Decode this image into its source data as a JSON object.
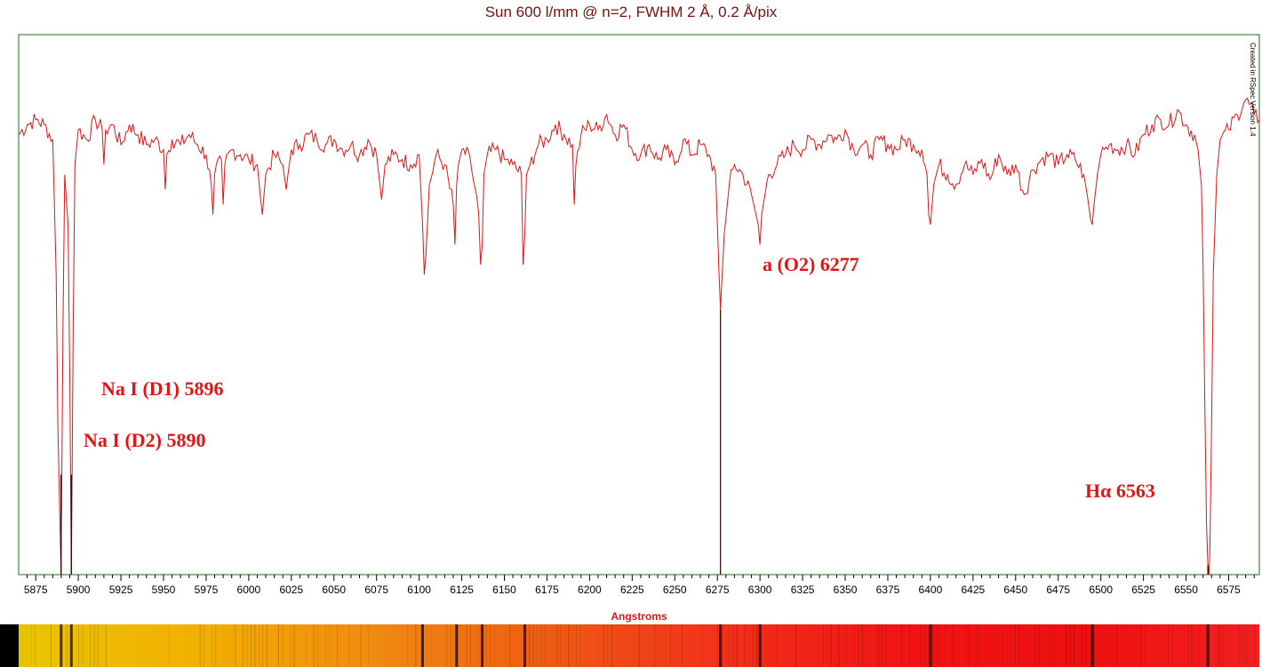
{
  "chart_data": {
    "type": "line",
    "title": "Sun 600 l/mm @ n=2, FWHM 2 Å, 0.2 Å/pix",
    "xlabel": "Angstroms",
    "ylabel": "",
    "xlim": [
      5865,
      6593
    ],
    "ylim": [
      0,
      1.08
    ],
    "x_ticks": [
      5875,
      5900,
      5925,
      5950,
      5975,
      6000,
      6025,
      6050,
      6075,
      6100,
      6125,
      6150,
      6175,
      6200,
      6225,
      6250,
      6275,
      6300,
      6325,
      6350,
      6375,
      6400,
      6425,
      6450,
      6475,
      6500,
      6525,
      6550,
      6575
    ],
    "grid": false,
    "legend": "none",
    "line_color": "#e31414",
    "frame_color": "#1f6f1f",
    "series": [
      {
        "x": [
          5865,
          5870,
          5875,
          5880,
          5885,
          5887,
          5888,
          5889,
          5889.9,
          5891,
          5892,
          5894,
          5895,
          5895.9,
          5897,
          5898,
          5900,
          5905,
          5910,
          5914,
          5915,
          5916,
          5920,
          5925,
          5930,
          5935,
          5940,
          5945,
          5950,
          5951,
          5952,
          5955,
          5960,
          5965,
          5970,
          5975,
          5978,
          5979,
          5980,
          5984,
          5985,
          5986,
          5990,
          5995,
          6000,
          6005,
          6007,
          6008,
          6010,
          6015,
          6020,
          6022,
          6023,
          6025,
          6030,
          6035,
          6040,
          6045,
          6050,
          6055,
          6060,
          6065,
          6070,
          6075,
          6077,
          6078,
          6080,
          6085,
          6090,
          6095,
          6100,
          6102,
          6103,
          6104,
          6106,
          6110,
          6115,
          6120,
          6121,
          6122,
          6123,
          6125,
          6130,
          6135,
          6136,
          6137,
          6138,
          6140,
          6145,
          6150,
          6155,
          6160,
          6161,
          6162,
          6163,
          6165,
          6170,
          6175,
          6180,
          6185,
          6190,
          6191,
          6192,
          6195,
          6200,
          6205,
          6210,
          6215,
          6220,
          6225,
          6230,
          6235,
          6240,
          6245,
          6250,
          6255,
          6260,
          6265,
          6270,
          6274,
          6275,
          6276,
          6276.8,
          6277.5,
          6279,
          6282,
          6285,
          6290,
          6295,
          6299,
          6300,
          6301,
          6305,
          6310,
          6315,
          6320,
          6325,
          6330,
          6335,
          6340,
          6345,
          6350,
          6355,
          6360,
          6365,
          6370,
          6375,
          6380,
          6385,
          6390,
          6395,
          6398,
          6399,
          6400,
          6402,
          6405,
          6410,
          6415,
          6420,
          6425,
          6430,
          6435,
          6440,
          6445,
          6450,
          6455,
          6460,
          6465,
          6470,
          6475,
          6480,
          6485,
          6490,
          6492,
          6494,
          6495,
          6496,
          6498,
          6500,
          6505,
          6510,
          6515,
          6520,
          6525,
          6530,
          6535,
          6540,
          6545,
          6550,
          6555,
          6557,
          6559,
          6560,
          6561,
          6562,
          6562.8,
          6563.5,
          6564,
          6565,
          6566,
          6568,
          6570,
          6575,
          6580,
          6585,
          6590,
          6593
        ],
        "y": [
          0.88,
          0.9,
          0.91,
          0.9,
          0.87,
          0.6,
          0.3,
          0.14,
          0.0,
          0.5,
          0.8,
          0.7,
          0.4,
          0.0,
          0.5,
          0.82,
          0.89,
          0.87,
          0.91,
          0.89,
          0.82,
          0.89,
          0.9,
          0.86,
          0.9,
          0.88,
          0.86,
          0.87,
          0.85,
          0.77,
          0.84,
          0.87,
          0.86,
          0.88,
          0.86,
          0.84,
          0.78,
          0.72,
          0.8,
          0.83,
          0.74,
          0.82,
          0.85,
          0.84,
          0.83,
          0.82,
          0.75,
          0.72,
          0.8,
          0.84,
          0.82,
          0.77,
          0.8,
          0.85,
          0.86,
          0.88,
          0.87,
          0.86,
          0.87,
          0.85,
          0.86,
          0.84,
          0.87,
          0.84,
          0.78,
          0.75,
          0.82,
          0.84,
          0.83,
          0.82,
          0.84,
          0.7,
          0.6,
          0.64,
          0.78,
          0.84,
          0.82,
          0.74,
          0.66,
          0.78,
          0.82,
          0.85,
          0.83,
          0.72,
          0.62,
          0.66,
          0.8,
          0.84,
          0.85,
          0.83,
          0.82,
          0.8,
          0.62,
          0.68,
          0.8,
          0.82,
          0.86,
          0.87,
          0.9,
          0.88,
          0.86,
          0.74,
          0.82,
          0.88,
          0.9,
          0.89,
          0.92,
          0.88,
          0.9,
          0.85,
          0.84,
          0.86,
          0.83,
          0.85,
          0.82,
          0.87,
          0.84,
          0.86,
          0.84,
          0.8,
          0.7,
          0.6,
          0.53,
          0.58,
          0.68,
          0.78,
          0.82,
          0.8,
          0.76,
          0.7,
          0.66,
          0.72,
          0.8,
          0.82,
          0.84,
          0.86,
          0.85,
          0.87,
          0.86,
          0.88,
          0.87,
          0.89,
          0.85,
          0.86,
          0.84,
          0.87,
          0.86,
          0.85,
          0.87,
          0.86,
          0.85,
          0.8,
          0.72,
          0.7,
          0.78,
          0.82,
          0.8,
          0.78,
          0.82,
          0.8,
          0.83,
          0.79,
          0.84,
          0.8,
          0.82,
          0.76,
          0.81,
          0.83,
          0.84,
          0.82,
          0.84,
          0.83,
          0.8,
          0.76,
          0.71,
          0.7,
          0.74,
          0.8,
          0.84,
          0.86,
          0.85,
          0.86,
          0.84,
          0.88,
          0.9,
          0.91,
          0.9,
          0.93,
          0.9,
          0.88,
          0.85,
          0.78,
          0.62,
          0.35,
          0.1,
          0.02,
          0.0,
          0.05,
          0.3,
          0.6,
          0.8,
          0.87,
          0.89,
          0.92,
          0.95,
          0.92,
          0.91
        ]
      }
    ],
    "annotations": [
      {
        "text": "Na I (D1) 5896",
        "line_x": 5895.9
      },
      {
        "text": "Na I (D2) 5890",
        "line_x": 5889.9
      },
      {
        "text": "a (O2) 6277",
        "line_x": 6276.8
      },
      {
        "text": "Hα 6563",
        "line_x": 6562.8
      }
    ],
    "credit": "Created in RSpec Version 1.4"
  },
  "spectrum_strip": {
    "gradient_stops": [
      "#e8c400",
      "#f2b000",
      "#f08a10",
      "#ee5a14",
      "#f0301a",
      "#f01414",
      "#ee1010",
      "#f22020"
    ],
    "absorption_lines_x": [
      5889.9,
      5895.9,
      6102,
      6122,
      6137,
      6162,
      6276.8,
      6300,
      6400,
      6495,
      6562.8
    ]
  }
}
